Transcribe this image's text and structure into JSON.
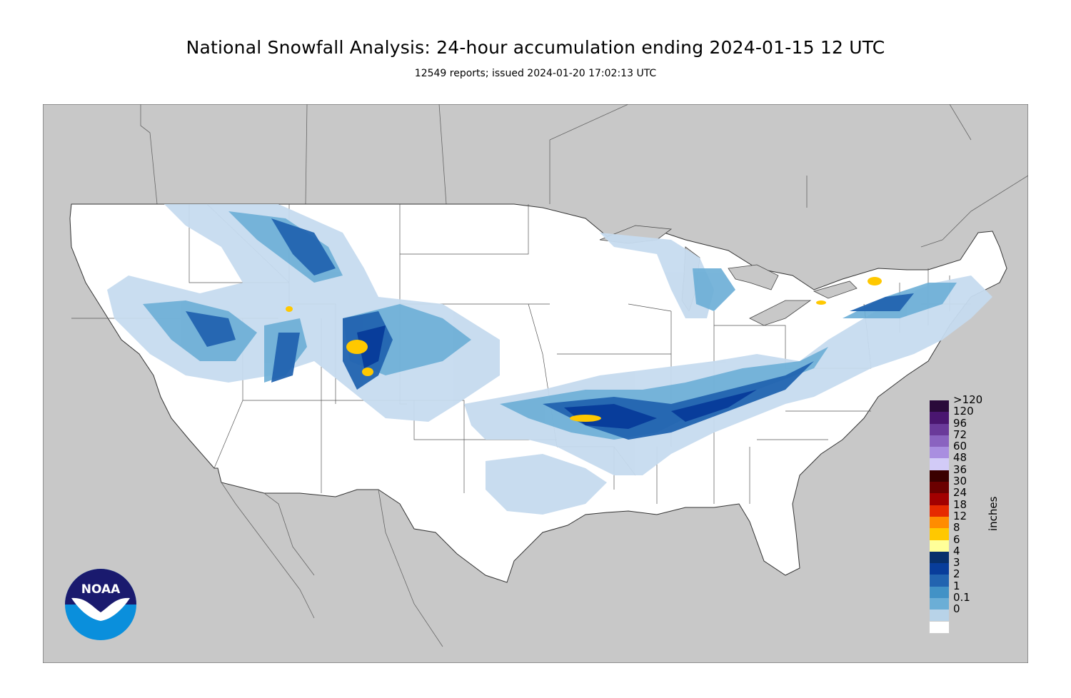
{
  "title": "National Snowfall Analysis: 24-hour accumulation ending 2024-01-15 12 UTC",
  "subtitle": "12549 reports; issued 2024-01-20 17:02:13 UTC",
  "legend": {
    "units": "inches",
    "bins": [
      {
        "label": ">120",
        "color": "#2a0a3a"
      },
      {
        "label": "120",
        "color": "#4a1670"
      },
      {
        "label": "96",
        "color": "#6a3a9a"
      },
      {
        "label": "72",
        "color": "#8a63c0"
      },
      {
        "label": "60",
        "color": "#a98ee0"
      },
      {
        "label": "48",
        "color": "#d2cbf7"
      },
      {
        "label": "36",
        "color": "#3a0000"
      },
      {
        "label": "30",
        "color": "#6b0000"
      },
      {
        "label": "24",
        "color": "#a20000"
      },
      {
        "label": "18",
        "color": "#e62a00"
      },
      {
        "label": "12",
        "color": "#ff8c00"
      },
      {
        "label": "8",
        "color": "#ffc800"
      },
      {
        "label": "6",
        "color": "#ffff99"
      },
      {
        "label": "4",
        "color": "#08306b"
      },
      {
        "label": "3",
        "color": "#083d9b"
      },
      {
        "label": "2",
        "color": "#2264b0"
      },
      {
        "label": "1",
        "color": "#4292c6"
      },
      {
        "label": "0.1",
        "color": "#6baed6"
      },
      {
        "label": "0",
        "color": "#b8d3e8"
      }
    ],
    "bottom_color": "#ffffff",
    "bottom_light": "#deebf7"
  },
  "logo": {
    "text": "NOAA"
  },
  "colors": {
    "ocean": "#c8c8c8",
    "land_outside": "#c8c8c8",
    "conus": "#ffffff",
    "light_snow": "#c6dbef",
    "moderate_snow": "#6baed6",
    "heavy_snow": "#2264b0",
    "very_heavy_snow": "#083d9b",
    "extreme_snow": "#ffc800"
  }
}
